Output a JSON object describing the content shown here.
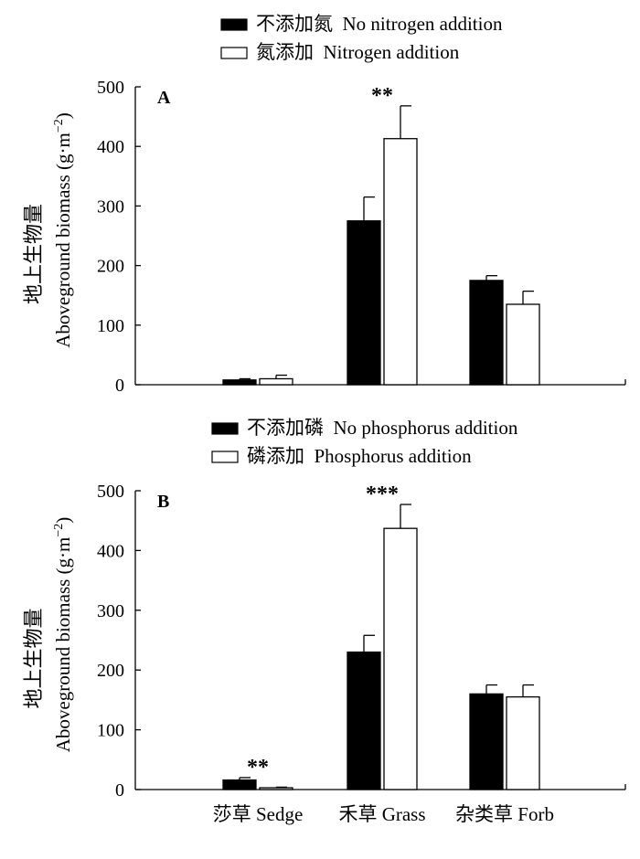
{
  "chart_data": [
    {
      "type": "bar",
      "panel_label": "A",
      "ylabel_cn": "地上生物量",
      "ylabel_en": "Aboveground biomass (g·m",
      "ylabel_unit_sup": "−2",
      "ylabel_close": ")",
      "ylim": [
        0,
        500
      ],
      "yticks": [
        "0",
        "100",
        "200",
        "300",
        "400",
        "500"
      ],
      "categories": [
        "莎草 Sedge",
        "禾草 Grass",
        "杂类草 Forb"
      ],
      "show_category_labels": false,
      "series": [
        {
          "name": "不添加氮  No nitrogen addition",
          "fill": "#000000",
          "values": [
            8,
            275,
            175
          ],
          "errors": [
            2,
            40,
            8
          ]
        },
        {
          "name": "氮添加  Nitrogen addition",
          "fill": "#ffffff",
          "values": [
            10,
            413,
            135
          ],
          "errors": [
            6,
            55,
            22
          ]
        }
      ],
      "annotations": [
        {
          "category_index": 1,
          "text": "**"
        }
      ],
      "legend_position": "top-center"
    },
    {
      "type": "bar",
      "panel_label": "B",
      "ylabel_cn": "地上生物量",
      "ylabel_en": "Aboveground biomass (g·m",
      "ylabel_unit_sup": "−2",
      "ylabel_close": ")",
      "ylim": [
        0,
        500
      ],
      "yticks": [
        "0",
        "100",
        "200",
        "300",
        "400",
        "500"
      ],
      "categories": [
        "莎草 Sedge",
        "禾草 Grass",
        "杂类草 Forb"
      ],
      "show_category_labels": true,
      "series": [
        {
          "name": "不添加磷  No phosphorus addition",
          "fill": "#000000",
          "values": [
            16,
            230,
            160
          ],
          "errors": [
            4,
            28,
            15
          ]
        },
        {
          "name": "磷添加  Phosphorus addition",
          "fill": "#ffffff",
          "values": [
            3,
            437,
            155
          ],
          "errors": [
            1,
            40,
            20
          ]
        }
      ],
      "annotations": [
        {
          "category_index": 0,
          "text": "**"
        },
        {
          "category_index": 1,
          "text": "***"
        }
      ],
      "legend_position": "top-center"
    }
  ]
}
